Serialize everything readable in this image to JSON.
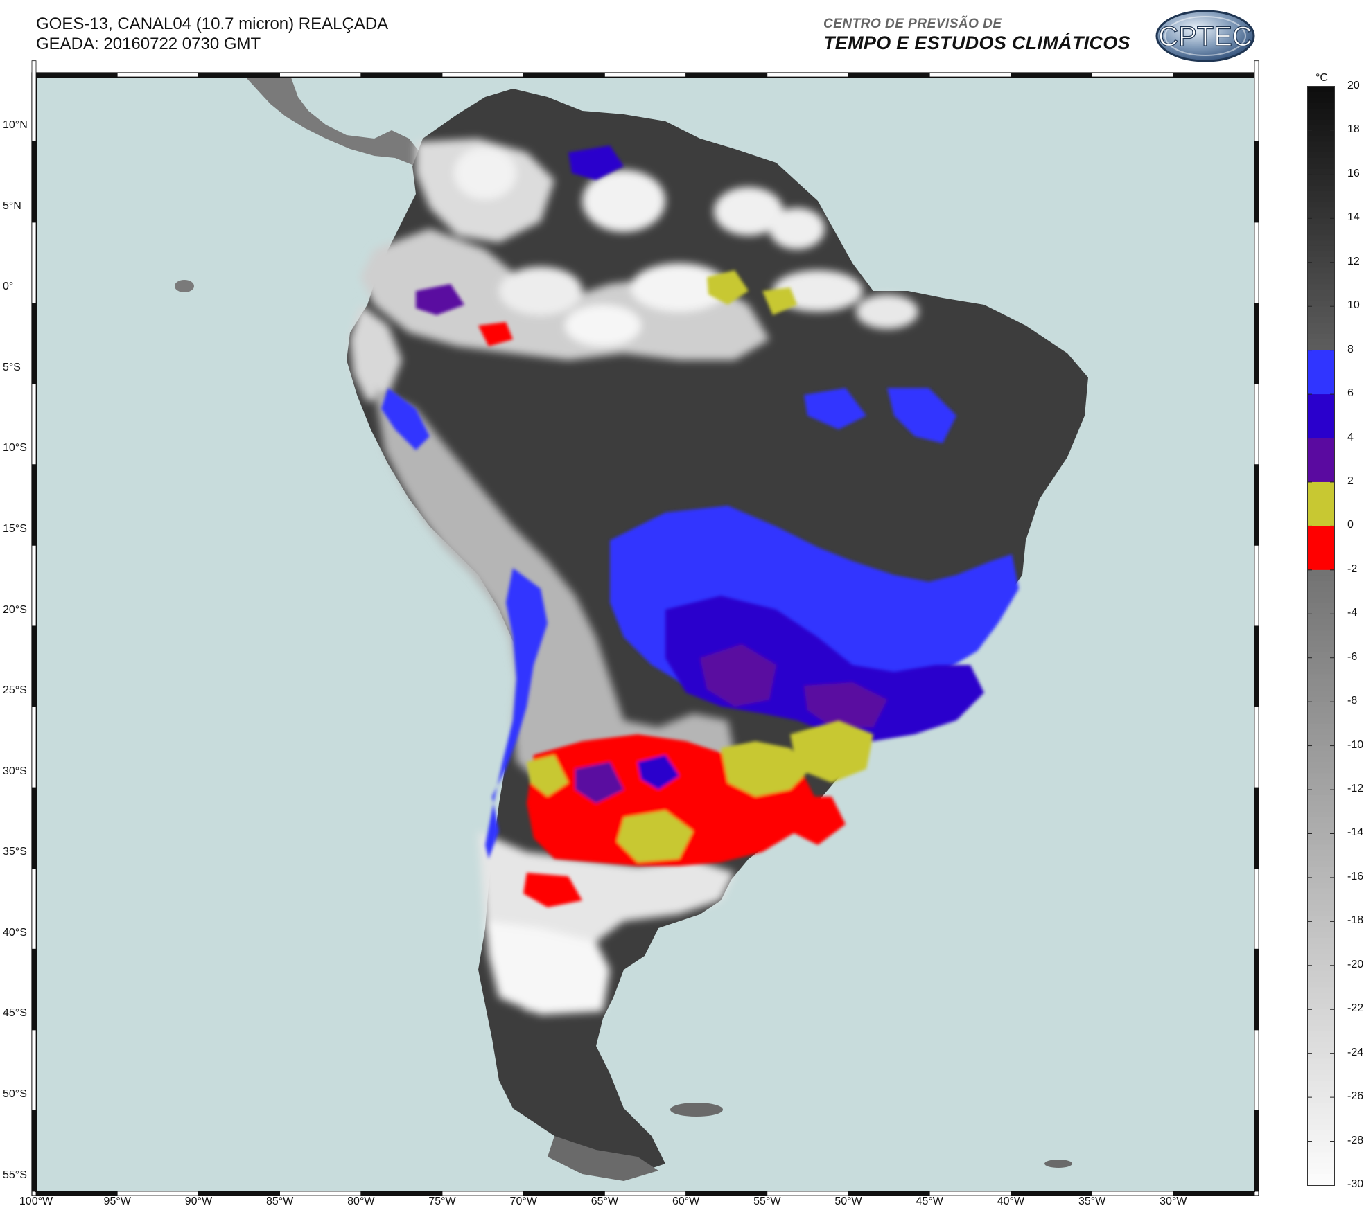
{
  "header": {
    "line1": "GOES-13, CANAL04 (10.7 micron) REALÇADA",
    "line2": "GEADA: 20160722 0730 GMT"
  },
  "organization": {
    "subtitle": "CENTRO DE PREVISÃO DE",
    "title": "TEMPO E ESTUDOS CLIMÁTICOS",
    "logo_text": "CPTEC"
  },
  "map": {
    "lon_range": [
      -100,
      -25
    ],
    "lat_range": [
      -56,
      13
    ],
    "ocean_color": "#c8dcdc",
    "lat_labels": [
      "10°N",
      "5°N",
      "0°",
      "5°S",
      "10°S",
      "15°S",
      "20°S",
      "25°S",
      "30°S",
      "35°S",
      "40°S",
      "45°S",
      "50°S",
      "55°S"
    ],
    "lon_labels": [
      "100°W",
      "95°W",
      "90°W",
      "85°W",
      "80°W",
      "75°W",
      "70°W",
      "65°W",
      "60°W",
      "55°W",
      "50°W",
      "45°W",
      "40°W",
      "35°W",
      "30°W"
    ]
  },
  "colorbar": {
    "unit": "°C",
    "ticks": [
      "20",
      "18",
      "16",
      "14",
      "12",
      "10",
      "8",
      "6",
      "4",
      "2",
      "0",
      "-2",
      "-4",
      "-6",
      "-8",
      "-10",
      "-12",
      "-14",
      "-16",
      "-18",
      "-20",
      "-22",
      "-24",
      "-26",
      "-28",
      "-30"
    ],
    "highlight_colors": {
      "6_to_8": "#3035ff",
      "4_to_6": "#2a00cc",
      "2_to_4": "#5a0aa0",
      "0_to_2": "#c8c832",
      "-2_to_0": "#ff0000"
    }
  }
}
